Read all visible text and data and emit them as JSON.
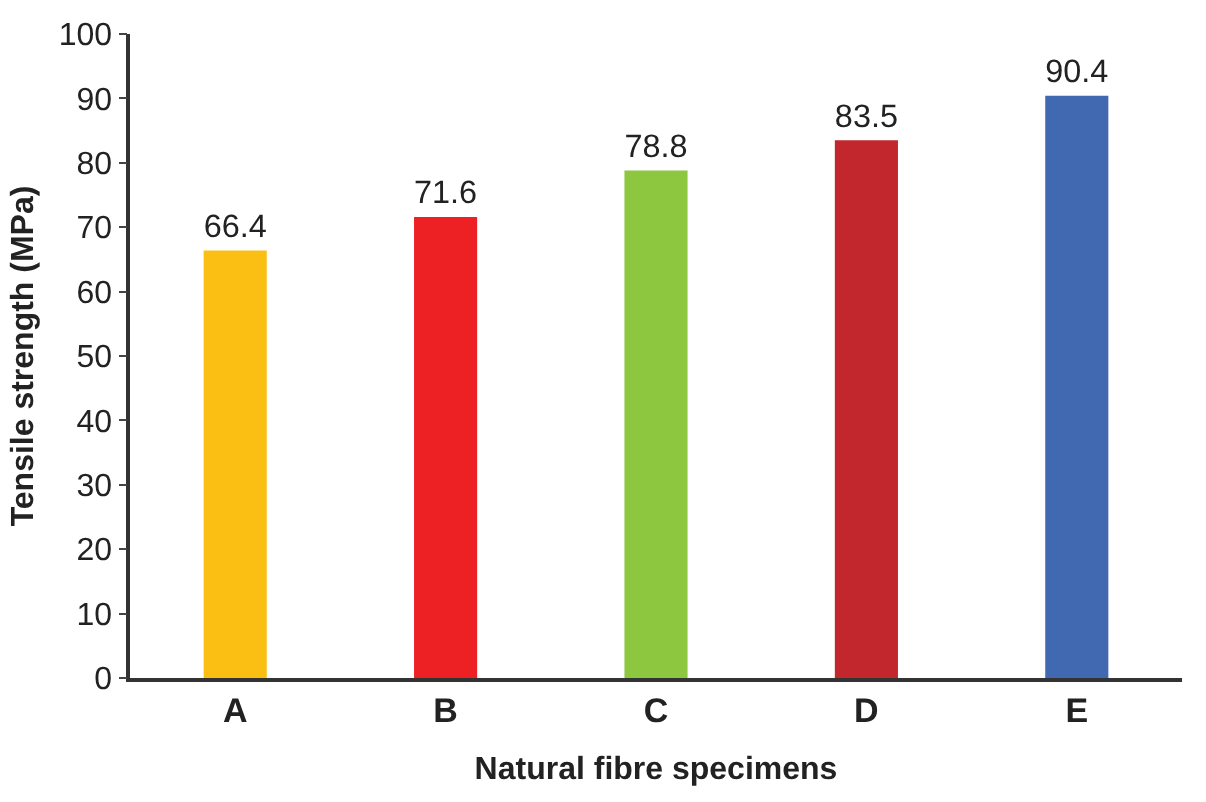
{
  "chart_data": {
    "type": "bar",
    "xlabel": "Natural fibre specimens",
    "ylabel": "Tensile strength (MPa)",
    "categories": [
      "A",
      "B",
      "C",
      "D",
      "E"
    ],
    "values": [
      66.4,
      71.6,
      78.8,
      83.5,
      90.4
    ],
    "colors": [
      "#fbbf14",
      "#ed2124",
      "#8dc63f",
      "#c1272d",
      "#4169b1"
    ],
    "ylim": [
      0,
      100
    ],
    "yticks": [
      0,
      10,
      20,
      30,
      40,
      50,
      60,
      70,
      80,
      90,
      100
    ],
    "grid": false,
    "data_labels": true
  }
}
